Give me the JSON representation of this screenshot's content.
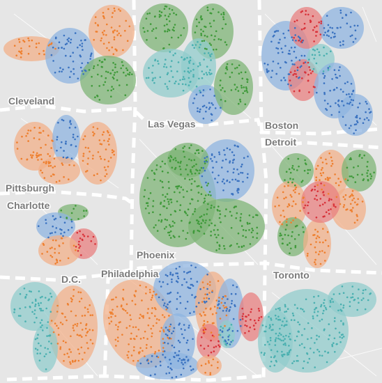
{
  "labels": [
    "Cleveland",
    "Las Vegas",
    "Boston",
    "Detroit",
    "Pittsburgh",
    "Charlotte",
    "Phoenix",
    "D.C.",
    "Philadelphia",
    "Toronto"
  ]
}
